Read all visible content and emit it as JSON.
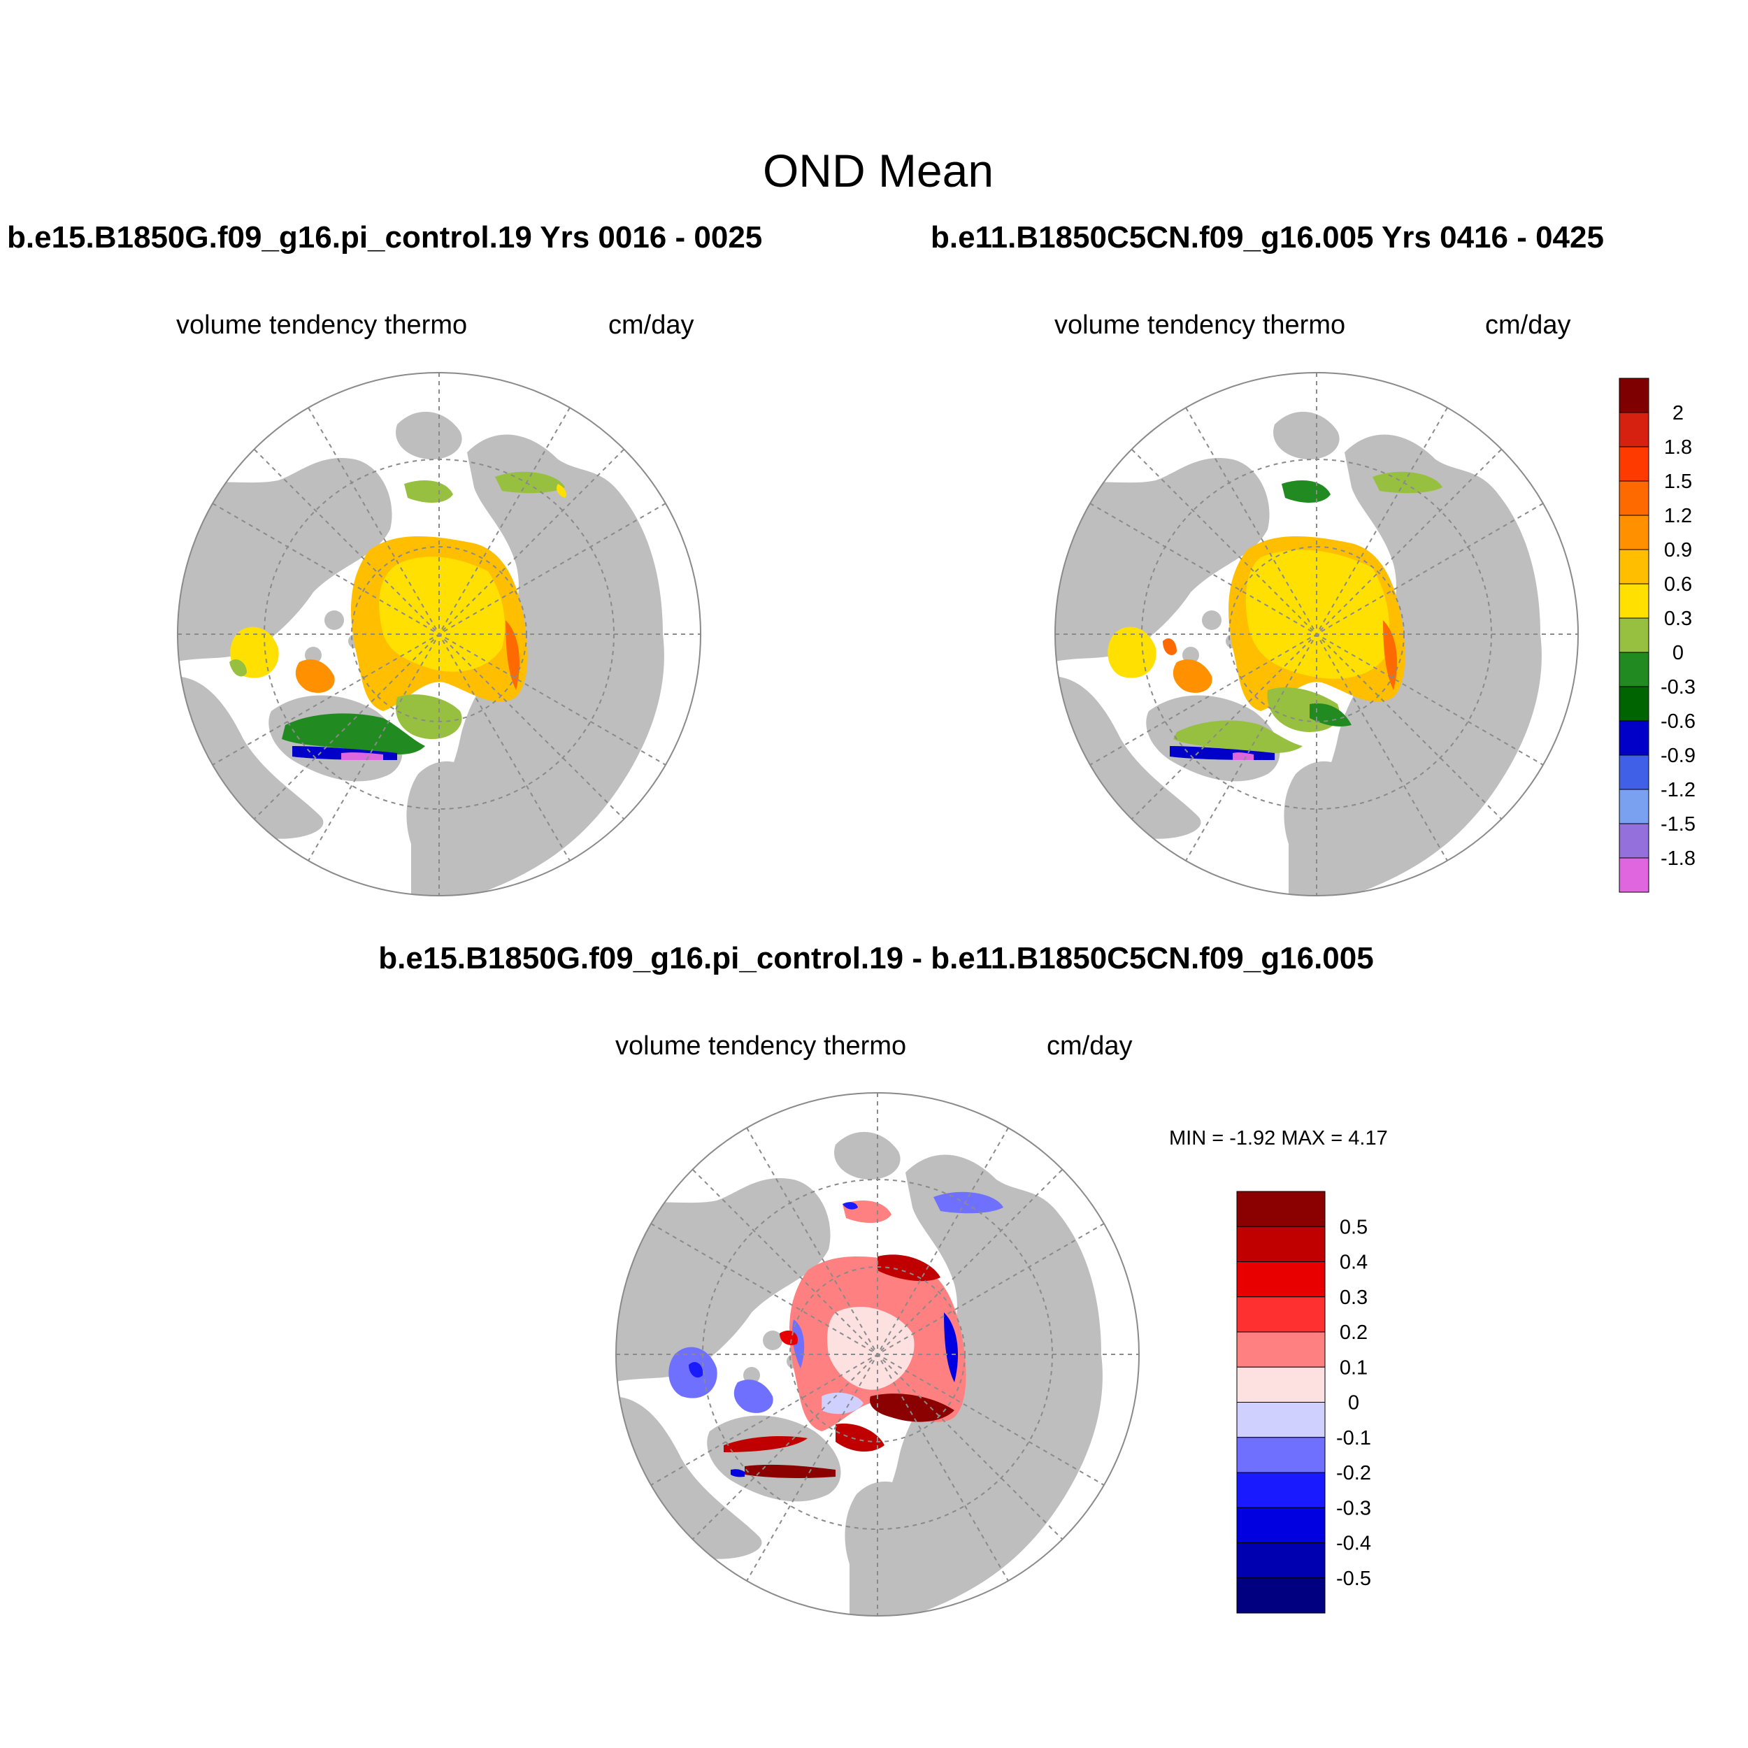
{
  "page": {
    "title": "OND Mean",
    "diff_title": "b.e15.B1850G.f09_g16.pi_control.19 - b.e11.B1850C5CN.f09_g16.005",
    "min_max": "MIN =  -1.92 MAX =   4.17"
  },
  "panels": [
    {
      "case_title": "b.e15.B1850G.f09_g16.pi_control.19  Yrs 0016 - 0025",
      "left_label": "volume tendency thermo",
      "right_label": "cm/day"
    },
    {
      "case_title": "b.e11.B1850C5CN.f09_g16.005  Yrs 0416 - 0425",
      "left_label": "volume tendency thermo",
      "right_label": "cm/day"
    },
    {
      "case_title": "",
      "left_label": "volume tendency thermo",
      "right_label": "cm/day"
    }
  ],
  "colors": {
    "land": "#bebebe",
    "ocean": "#ffffff",
    "grid": "#8a8a8a",
    "rim": "#8a8a8a"
  },
  "colorbar_abs": {
    "labels": [
      "2",
      "1.8",
      "1.5",
      "1.2",
      "0.9",
      "0.6",
      "0.3",
      "0",
      "-0.3",
      "-0.6",
      "-0.9",
      "-1.2",
      "-1.5",
      "-1.8"
    ],
    "colors": [
      "#7f0000",
      "#d62010",
      "#ff3a00",
      "#ff6a00",
      "#ff9000",
      "#ffbe00",
      "#ffe000",
      "#98c040",
      "#218b21",
      "#006400",
      "#0000c8",
      "#4060e8",
      "#7aa0f0",
      "#9370db",
      "#e066e0"
    ]
  },
  "colorbar_diff": {
    "labels": [
      "0.5",
      "0.4",
      "0.3",
      "0.2",
      "0.1",
      "0",
      "-0.1",
      "-0.2",
      "-0.3",
      "-0.4",
      "-0.5"
    ],
    "colors": [
      "#8b0000",
      "#c00000",
      "#e80000",
      "#ff3030",
      "#ff8080",
      "#fde0e0",
      "#d0d0ff",
      "#7070ff",
      "#1a1aff",
      "#0000e0",
      "#0000b0",
      "#000080"
    ]
  }
}
